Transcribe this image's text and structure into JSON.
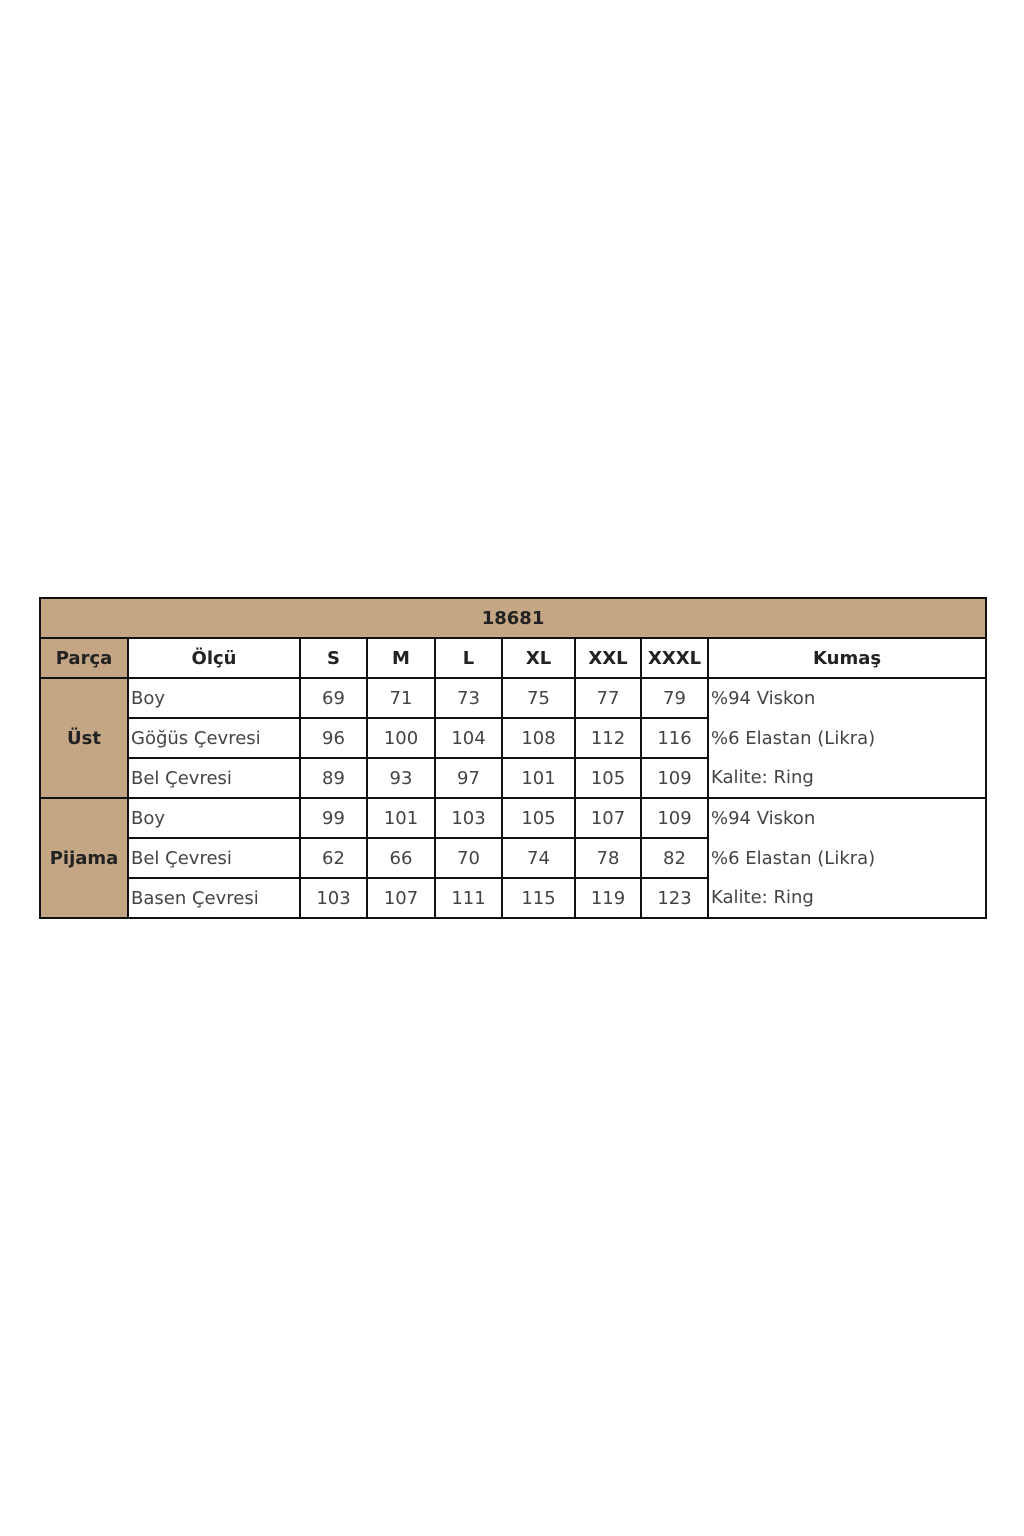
{
  "title": "18681",
  "colors": {
    "header_bg": "#c4a584",
    "border": "#111111"
  },
  "headers": [
    "Parça",
    "Ölçü",
    "S",
    "M",
    "L",
    "XL",
    "XXL",
    "XXXL",
    "Kumaş"
  ],
  "groups": [
    {
      "part": "Üst",
      "rows": [
        {
          "measure": "Boy",
          "values": [
            "69",
            "71",
            "73",
            "75",
            "77",
            "79"
          ],
          "fabric": "%94 Viskon"
        },
        {
          "measure": "Göğüs Çevresi",
          "values": [
            "96",
            "100",
            "104",
            "108",
            "112",
            "116"
          ],
          "fabric": "%6 Elastan (Likra)"
        },
        {
          "measure": "Bel Çevresi",
          "values": [
            "89",
            "93",
            "97",
            "101",
            "105",
            "109"
          ],
          "fabric": "Kalite: Ring"
        }
      ]
    },
    {
      "part": "Pijama",
      "rows": [
        {
          "measure": "Boy",
          "values": [
            "99",
            "101",
            "103",
            "105",
            "107",
            "109"
          ],
          "fabric": "%94 Viskon"
        },
        {
          "measure": "Bel Çevresi",
          "values": [
            "62",
            "66",
            "70",
            "74",
            "78",
            "82"
          ],
          "fabric": "%6 Elastan (Likra)"
        },
        {
          "measure": "Basen Çevresi",
          "values": [
            "103",
            "107",
            "111",
            "115",
            "119",
            "123"
          ],
          "fabric": "Kalite: Ring"
        }
      ]
    }
  ]
}
